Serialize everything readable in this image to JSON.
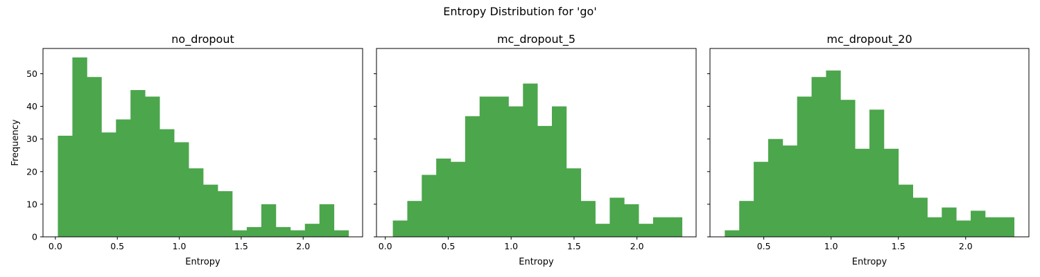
{
  "figure": {
    "suptitle": "Entropy Distribution for 'go'",
    "bar_color": "#4ca64c",
    "ylabel": "Frequency"
  },
  "chart_data": [
    {
      "type": "bar",
      "title": "no_dropout",
      "xlabel": "Entropy",
      "ylabel": "Frequency",
      "bin_start": 0.02,
      "bin_width": 0.1173,
      "values": [
        31,
        55,
        49,
        32,
        36,
        45,
        43,
        33,
        29,
        21,
        16,
        14,
        2,
        3,
        10,
        3,
        2,
        4,
        10,
        2
      ],
      "xlim": [
        -0.1,
        2.48
      ],
      "ylim": [
        0,
        57.75
      ],
      "xticks": [
        0.0,
        0.5,
        1.0,
        1.5,
        2.0
      ],
      "yticks": [
        0,
        10,
        20,
        30,
        40,
        50
      ]
    },
    {
      "type": "bar",
      "title": "mc_dropout_5",
      "xlabel": "Entropy",
      "ylabel": "",
      "bin_start": 0.06,
      "bin_width": 0.1149,
      "values": [
        5,
        11,
        19,
        24,
        23,
        37,
        43,
        43,
        40,
        47,
        34,
        40,
        21,
        11,
        4,
        12,
        10,
        4,
        6,
        6
      ],
      "xlim": [
        -0.07,
        2.47
      ],
      "ylim": [
        0,
        57.75
      ],
      "xticks": [
        0.0,
        0.5,
        1.0,
        1.5,
        2.0
      ],
      "yticks": [
        0,
        10,
        20,
        30,
        40,
        50
      ]
    },
    {
      "type": "bar",
      "title": "mc_dropout_20",
      "xlabel": "Entropy",
      "ylabel": "",
      "bin_start": 0.21,
      "bin_width": 0.1075,
      "values": [
        2,
        11,
        23,
        30,
        28,
        43,
        49,
        51,
        42,
        27,
        39,
        27,
        16,
        12,
        6,
        9,
        5,
        8,
        6,
        6
      ],
      "xlim": [
        0.1,
        2.47
      ],
      "ylim": [
        0,
        57.75
      ],
      "xticks": [
        0.5,
        1.0,
        1.5,
        2.0
      ],
      "yticks": [
        0,
        10,
        20,
        30,
        40,
        50
      ]
    }
  ]
}
